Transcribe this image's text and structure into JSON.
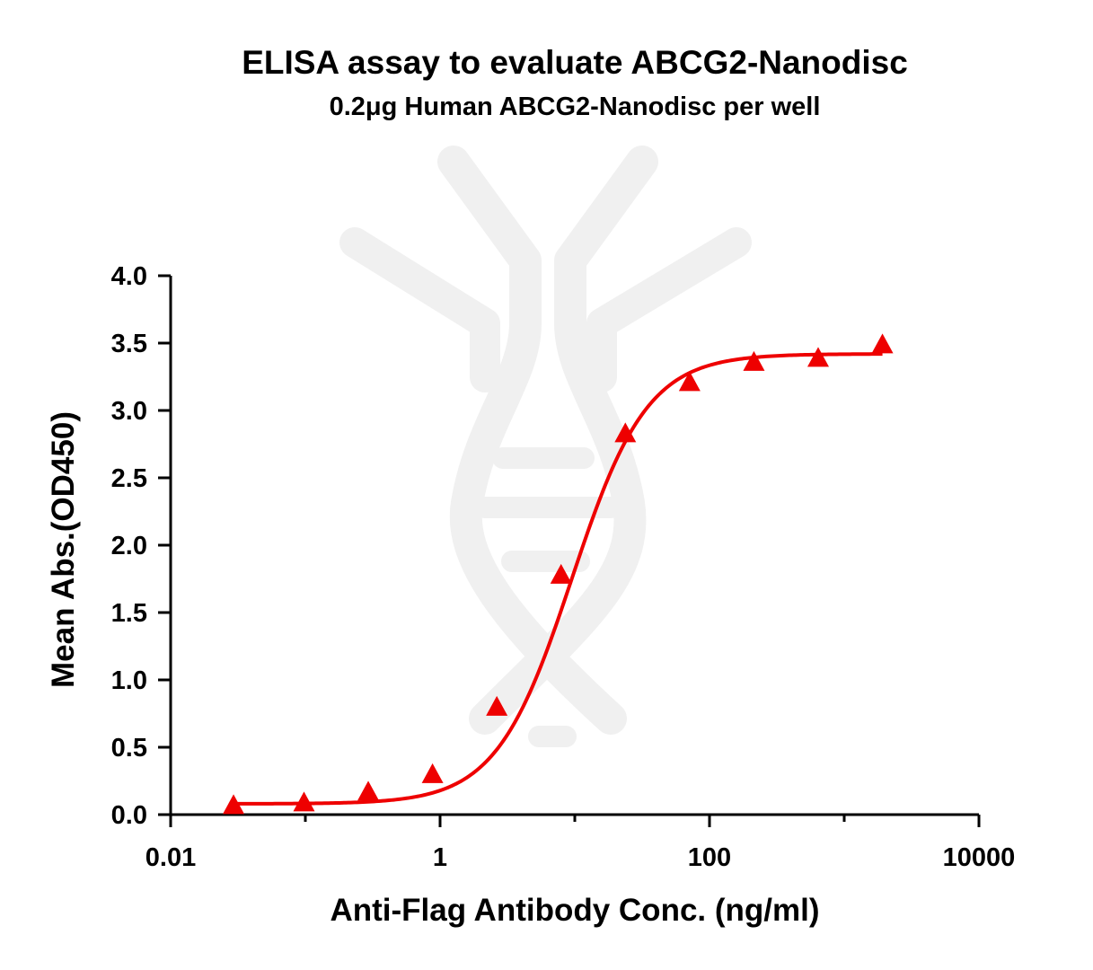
{
  "chart_data": {
    "type": "scatter",
    "title": "ELISA assay to evaluate ABCG2-Nanodisc",
    "subtitle": "0.2μg Human ABCG2-Nanodisc per well",
    "xlabel": "Anti-Flag Antibody Conc. (ng/ml)",
    "ylabel": "Mean Abs.(OD450)",
    "xscale": "log",
    "xlim": [
      0.01,
      10000
    ],
    "ylim": [
      0,
      4.0
    ],
    "x_ticks": [
      {
        "value": 0.01,
        "label": "0.01"
      },
      {
        "value": 1,
        "label": "1"
      },
      {
        "value": 100,
        "label": "100"
      },
      {
        "value": 10000,
        "label": "10000"
      }
    ],
    "y_ticks": [
      {
        "value": 0.0,
        "label": "0.0"
      },
      {
        "value": 0.5,
        "label": "0.5"
      },
      {
        "value": 1.0,
        "label": "1.0"
      },
      {
        "value": 1.5,
        "label": "1.5"
      },
      {
        "value": 2.0,
        "label": "2.0"
      },
      {
        "value": 2.5,
        "label": "2.5"
      },
      {
        "value": 3.0,
        "label": "3.0"
      },
      {
        "value": 3.5,
        "label": "3.5"
      },
      {
        "value": 4.0,
        "label": "4.0"
      }
    ],
    "grid": false,
    "marker": "triangle",
    "color": "#ee0000",
    "series": [
      {
        "x": [
          0.0293,
          0.0977,
          0.293,
          0.879,
          2.637,
          7.91,
          23.73,
          71.19,
          213.6,
          640.7,
          1922
        ],
        "y": [
          0.06,
          0.08,
          0.16,
          0.29,
          0.79,
          1.77,
          2.82,
          3.2,
          3.35,
          3.38,
          3.48
        ]
      }
    ],
    "fit": {
      "type": "4PL",
      "bottom": 0.08,
      "top": 3.42,
      "ec50": 9.5,
      "hill": 1.55
    },
    "watermark_color": "#f0f0f0"
  }
}
